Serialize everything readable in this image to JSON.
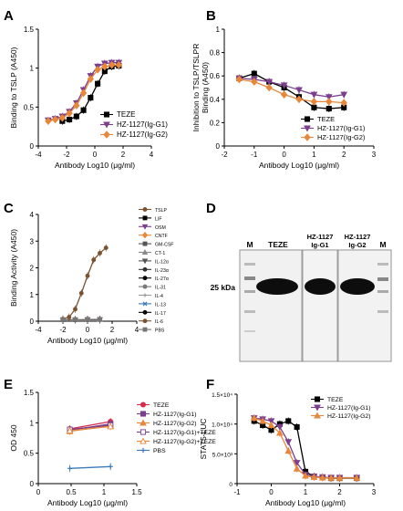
{
  "chart_data": [
    {
      "panel": "A",
      "type": "line",
      "xlabel": "Antibody Log10 (μg/ml)",
      "ylabel": "Binding to TSLP (A450)",
      "xlim": [
        -4,
        4
      ],
      "ylim": [
        0,
        1.5
      ],
      "xticks": [
        -4,
        -2,
        0,
        2,
        4
      ],
      "yticks": [
        0.0,
        0.5,
        1.0,
        1.5
      ],
      "grid": false,
      "legend": "bottom-right",
      "series": [
        {
          "name": "TEZE",
          "color": "#000000",
          "marker": "square",
          "x": [
            -2.3,
            -1.8,
            -1.3,
            -0.8,
            -0.3,
            0.2,
            0.7,
            1.2,
            1.7
          ],
          "y": [
            0.32,
            0.34,
            0.38,
            0.46,
            0.62,
            0.8,
            0.96,
            1.02,
            1.03
          ]
        },
        {
          "name": "HZ-1127(Ig-G1)",
          "color": "#7b3f8c",
          "marker": "triangle-down",
          "x": [
            -3.3,
            -2.8,
            -2.3,
            -1.8,
            -1.3,
            -0.8,
            -0.3,
            0.2,
            0.7,
            1.2,
            1.7
          ],
          "y": [
            0.33,
            0.35,
            0.38,
            0.44,
            0.55,
            0.72,
            0.9,
            1.02,
            1.06,
            1.07,
            1.07
          ]
        },
        {
          "name": "HZ-1127(Ig-G2)",
          "color": "#e8873a",
          "marker": "diamond",
          "x": [
            -3.3,
            -2.8,
            -2.3,
            -1.8,
            -1.3,
            -0.8,
            -0.3,
            0.2,
            0.7,
            1.2,
            1.7
          ],
          "y": [
            0.32,
            0.34,
            0.36,
            0.42,
            0.52,
            0.68,
            0.86,
            0.98,
            1.02,
            1.04,
            1.04
          ]
        }
      ]
    },
    {
      "panel": "B",
      "type": "line",
      "xlabel": "Antibody Log10 (μg/ml)",
      "ylabel": "Inhibition to TSLP/TSLPR Binding (A450)",
      "xlim": [
        -2,
        3
      ],
      "ylim": [
        0,
        1.0
      ],
      "xticks": [
        -2,
        -1,
        0,
        1,
        2,
        3
      ],
      "yticks": [
        0.0,
        0.2,
        0.4,
        0.6,
        0.8,
        1.0
      ],
      "grid": false,
      "legend": "bottom-right",
      "series": [
        {
          "name": "TEZE",
          "color": "#000000",
          "marker": "square",
          "x": [
            -1.5,
            -1.0,
            -0.5,
            0.0,
            0.5,
            1.0,
            1.5,
            2.0
          ],
          "y": [
            0.58,
            0.62,
            0.55,
            0.5,
            0.42,
            0.33,
            0.32,
            0.33
          ]
        },
        {
          "name": "HZ-1127(Ig-G1)",
          "color": "#7b3f8c",
          "marker": "triangle-down",
          "x": [
            -1.5,
            -1.0,
            -0.5,
            0.0,
            0.5,
            1.0,
            1.5,
            2.0
          ],
          "y": [
            0.58,
            0.57,
            0.55,
            0.52,
            0.48,
            0.44,
            0.42,
            0.44
          ]
        },
        {
          "name": "HZ-1127(Ig-G2)",
          "color": "#e8873a",
          "marker": "diamond",
          "x": [
            -1.5,
            -1.0,
            -0.5,
            0.0,
            0.5,
            1.0,
            1.5,
            2.0
          ],
          "y": [
            0.57,
            0.55,
            0.5,
            0.44,
            0.4,
            0.38,
            0.38,
            0.37
          ]
        }
      ]
    },
    {
      "panel": "C",
      "type": "line",
      "xlabel": "Antibody Log10 (μg/ml)",
      "ylabel": "Binding Activity (A450)",
      "xlim": [
        -4,
        4
      ],
      "ylim": [
        0,
        4
      ],
      "xticks": [
        -4,
        -2,
        0,
        2,
        4
      ],
      "yticks": [
        0,
        1,
        2,
        3,
        4
      ],
      "grid": false,
      "legend": "right",
      "series": [
        {
          "name": "TSLP",
          "color": "#7a5230",
          "marker": "circle",
          "x": [
            -2.0,
            -1.5,
            -1.0,
            -0.5,
            0.0,
            0.5,
            1.0,
            1.5
          ],
          "y": [
            0.08,
            0.15,
            0.45,
            1.05,
            1.7,
            2.3,
            2.55,
            2.75
          ]
        },
        {
          "name": "LIF",
          "color": "#000000",
          "marker": "square",
          "x": [
            -2.0,
            -1.0,
            0.0,
            1.0
          ],
          "y": [
            0.05,
            0.05,
            0.06,
            0.07
          ]
        },
        {
          "name": "OSM",
          "color": "#7b3f8c",
          "marker": "triangle-down",
          "x": [
            -2.0,
            -1.0,
            0.0,
            1.0
          ],
          "y": [
            0.05,
            0.05,
            0.06,
            0.06
          ]
        },
        {
          "name": "CNTF",
          "color": "#e8873a",
          "marker": "diamond",
          "x": [
            -2.0,
            -1.0,
            0.0,
            1.0
          ],
          "y": [
            0.05,
            0.05,
            0.05,
            0.06
          ]
        },
        {
          "name": "GM-CSF",
          "color": "#555555",
          "marker": "square",
          "x": [
            -2.0,
            -1.0,
            0.0,
            1.0
          ],
          "y": [
            0.06,
            0.06,
            0.06,
            0.07
          ]
        },
        {
          "name": "CT-1",
          "color": "#888888",
          "marker": "triangle",
          "x": [
            -2.0,
            -1.0,
            0.0,
            1.0
          ],
          "y": [
            0.05,
            0.06,
            0.06,
            0.07
          ]
        },
        {
          "name": "IL-12α",
          "color": "#555555",
          "marker": "triangle-down",
          "x": [
            -2.0,
            -1.0,
            0.0,
            1.0
          ],
          "y": [
            0.05,
            0.05,
            0.06,
            0.06
          ]
        },
        {
          "name": "IL-23α",
          "color": "#333333",
          "marker": "circle",
          "x": [
            -2.0,
            -1.0,
            0.0,
            1.0
          ],
          "y": [
            0.05,
            0.05,
            0.05,
            0.06
          ]
        },
        {
          "name": "IL-27α",
          "color": "#000000",
          "marker": "circle",
          "x": [
            -2.0,
            -1.0,
            0.0,
            1.0
          ],
          "y": [
            0.05,
            0.05,
            0.05,
            0.06
          ]
        },
        {
          "name": "IL-31",
          "color": "#777777",
          "marker": "circle",
          "x": [
            -2.0,
            -1.0,
            0.0,
            1.0
          ],
          "y": [
            0.05,
            0.05,
            0.06,
            0.06
          ]
        },
        {
          "name": "IL-4",
          "color": "#999999",
          "marker": "plus",
          "x": [
            -2.0,
            -1.0,
            0.0,
            1.0
          ],
          "y": [
            0.05,
            0.05,
            0.05,
            0.06
          ]
        },
        {
          "name": "IL-13",
          "color": "#3a7ab8",
          "marker": "cross",
          "x": [
            -2.0,
            -1.0,
            0.0,
            1.0
          ],
          "y": [
            0.05,
            0.05,
            0.05,
            0.06
          ]
        },
        {
          "name": "IL-17",
          "color": "#000000",
          "marker": "circle",
          "x": [
            -2.0,
            -1.0,
            0.0,
            1.0
          ],
          "y": [
            0.05,
            0.05,
            0.06,
            0.06
          ]
        },
        {
          "name": "IL-6",
          "color": "#7a5230",
          "marker": "circle",
          "x": [
            -2.0,
            -1.0,
            0.0,
            1.0
          ],
          "y": [
            0.05,
            0.05,
            0.05,
            0.06
          ]
        },
        {
          "name": "PBS",
          "color": "#777777",
          "marker": "square",
          "x": [
            -2.0,
            -1.0,
            0.0,
            1.0
          ],
          "y": [
            0.06,
            0.06,
            0.06,
            0.06
          ]
        }
      ]
    },
    {
      "panel": "E",
      "type": "line",
      "xlabel": "Antibody Log10 (μg/ml)",
      "ylabel": "OD 450",
      "xlim": [
        0.0,
        1.5
      ],
      "ylim": [
        0,
        1.5
      ],
      "xticks": [
        0.0,
        0.5,
        1.0,
        1.5
      ],
      "yticks": [
        0.0,
        0.5,
        1.0,
        1.5
      ],
      "grid": false,
      "legend": "right",
      "series": [
        {
          "name": "TEZE",
          "color": "#d62b4a",
          "marker": "circle",
          "x": [
            0.48,
            1.1
          ],
          "y": [
            0.9,
            1.02
          ]
        },
        {
          "name": "HZ-1127(Ig-G1)",
          "color": "#7b3f8c",
          "marker": "square",
          "x": [
            0.48,
            1.1
          ],
          "y": [
            0.88,
            0.98
          ]
        },
        {
          "name": "HZ-1127(Ig-G2)",
          "color": "#e8873a",
          "marker": "triangle",
          "x": [
            0.48,
            1.1
          ],
          "y": [
            0.86,
            0.95
          ]
        },
        {
          "name": "HZ-1127(Ig-G1)+TEZE",
          "color": "#7b3f8c",
          "marker": "square-open",
          "x": [
            0.48,
            1.1
          ],
          "y": [
            0.89,
            0.96
          ]
        },
        {
          "name": "HZ-1127(Ig-G2)+TEZE",
          "color": "#e8873a",
          "marker": "triangle-open",
          "x": [
            0.48,
            1.1
          ],
          "y": [
            0.87,
            0.94
          ]
        },
        {
          "name": "PBS",
          "color": "#3a7ab8",
          "marker": "plus",
          "x": [
            0.48,
            1.1
          ],
          "y": [
            0.25,
            0.28
          ]
        }
      ]
    },
    {
      "panel": "F",
      "type": "line",
      "xlabel": "Antibody Log10 (μg/ml)",
      "ylabel": "STAT5-LUC",
      "xlim": [
        -1,
        3
      ],
      "ylim": [
        0,
        15000
      ],
      "xticks": [
        -1,
        0,
        1,
        2,
        3
      ],
      "yticks": [
        0,
        5000,
        10000,
        15000
      ],
      "ytick_labels": [
        "0",
        "5.0×10³",
        "1.0×10⁴",
        "1.5×10⁴"
      ],
      "grid": false,
      "legend": "top-right",
      "series": [
        {
          "name": "TEZE",
          "color": "#000000",
          "marker": "square",
          "x": [
            -0.5,
            -0.25,
            0.0,
            0.25,
            0.5,
            0.75,
            1.0,
            1.25,
            1.5,
            1.75,
            2.0,
            2.5
          ],
          "y": [
            10500,
            9800,
            9000,
            10000,
            10500,
            9500,
            2000,
            1200,
            1000,
            900,
            900,
            900
          ]
        },
        {
          "name": "HZ-1127(Ig-G1)",
          "color": "#7b3f8c",
          "marker": "triangle-down",
          "x": [
            -0.5,
            -0.25,
            0.0,
            0.25,
            0.5,
            0.75,
            1.0,
            1.25,
            1.5,
            1.75,
            2.0,
            2.5
          ],
          "y": [
            11000,
            10800,
            10500,
            9500,
            7000,
            3500,
            1500,
            1200,
            1100,
            1000,
            1000,
            1000
          ]
        },
        {
          "name": "HZ-1127(Ig-G2)",
          "color": "#e8873a",
          "marker": "triangle",
          "x": [
            -0.5,
            -0.25,
            0.0,
            0.25,
            0.5,
            0.75,
            1.0,
            1.25,
            1.5,
            1.75,
            2.0,
            2.5
          ],
          "y": [
            11000,
            10500,
            9800,
            8500,
            5500,
            2500,
            1300,
            1100,
            1000,
            950,
            950,
            950
          ]
        }
      ]
    }
  ],
  "blot": {
    "panel": "D",
    "lane_labels": [
      "M",
      "TEZE",
      "HZ-1127\nIg-G1",
      "HZ-1127\nIg-G2",
      "M"
    ],
    "marker_label": "25 kDa"
  },
  "panel_letters": [
    "A",
    "B",
    "C",
    "D",
    "E",
    "F"
  ]
}
